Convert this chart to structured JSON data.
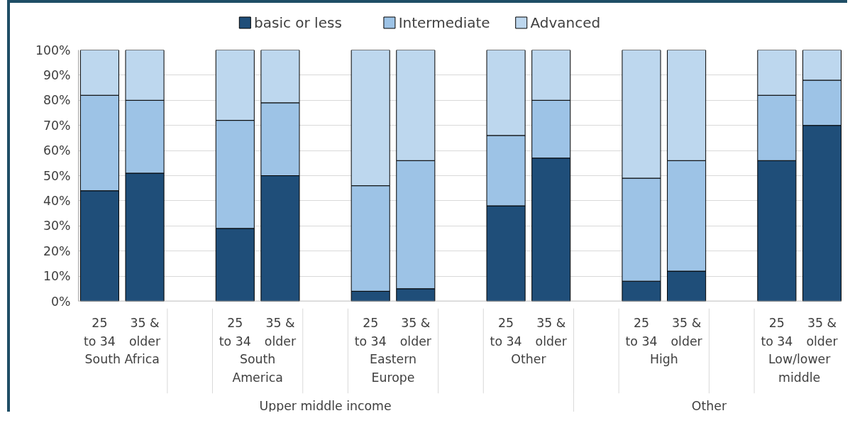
{
  "chart_data": {
    "type": "bar",
    "stacked": true,
    "categories": [
      "25\nto 34",
      "35 &\nolder",
      "25\nto 34",
      "35 &\nolder",
      "25\nto 34",
      "35 &\nolder",
      "25\nto 34",
      "35 &\nolder",
      "25\nto 34",
      "35 &\nolder",
      "25\nto 34",
      "35 &\nolder"
    ],
    "series": [
      {
        "name": "basic or less",
        "color": "#1f4e79",
        "values": [
          44,
          51,
          29,
          50,
          4,
          5,
          38,
          57,
          8,
          12,
          56,
          70
        ]
      },
      {
        "name": "Intermediate",
        "color": "#9dc3e6",
        "values": [
          38,
          29,
          43,
          29,
          42,
          51,
          28,
          23,
          41,
          44,
          26,
          18
        ]
      },
      {
        "name": "Advanced",
        "color": "#bdd7ee",
        "values": [
          18,
          20,
          28,
          21,
          54,
          44,
          34,
          20,
          51,
          44,
          18,
          12
        ]
      }
    ],
    "annotations": [
      "South Africa",
      "South\nAmerica",
      "Eastern\nEurope",
      "Other",
      "High",
      "Low/lower\nmiddle",
      "Upper middle income",
      "Other"
    ],
    "ylim": [
      0,
      100
    ],
    "yticks": [
      {
        "value": 0,
        "label": "0%"
      },
      {
        "value": 10,
        "label": "10%"
      },
      {
        "value": 20,
        "label": "20%"
      },
      {
        "value": 30,
        "label": "30%"
      },
      {
        "value": 40,
        "label": "40%"
      },
      {
        "value": 50,
        "label": "50%"
      },
      {
        "value": 60,
        "label": "60%"
      },
      {
        "value": 70,
        "label": "70%"
      },
      {
        "value": 80,
        "label": "80%"
      },
      {
        "value": 90,
        "label": "90%"
      },
      {
        "value": 100,
        "label": "100%"
      }
    ],
    "grid": "y",
    "legend": "top"
  }
}
